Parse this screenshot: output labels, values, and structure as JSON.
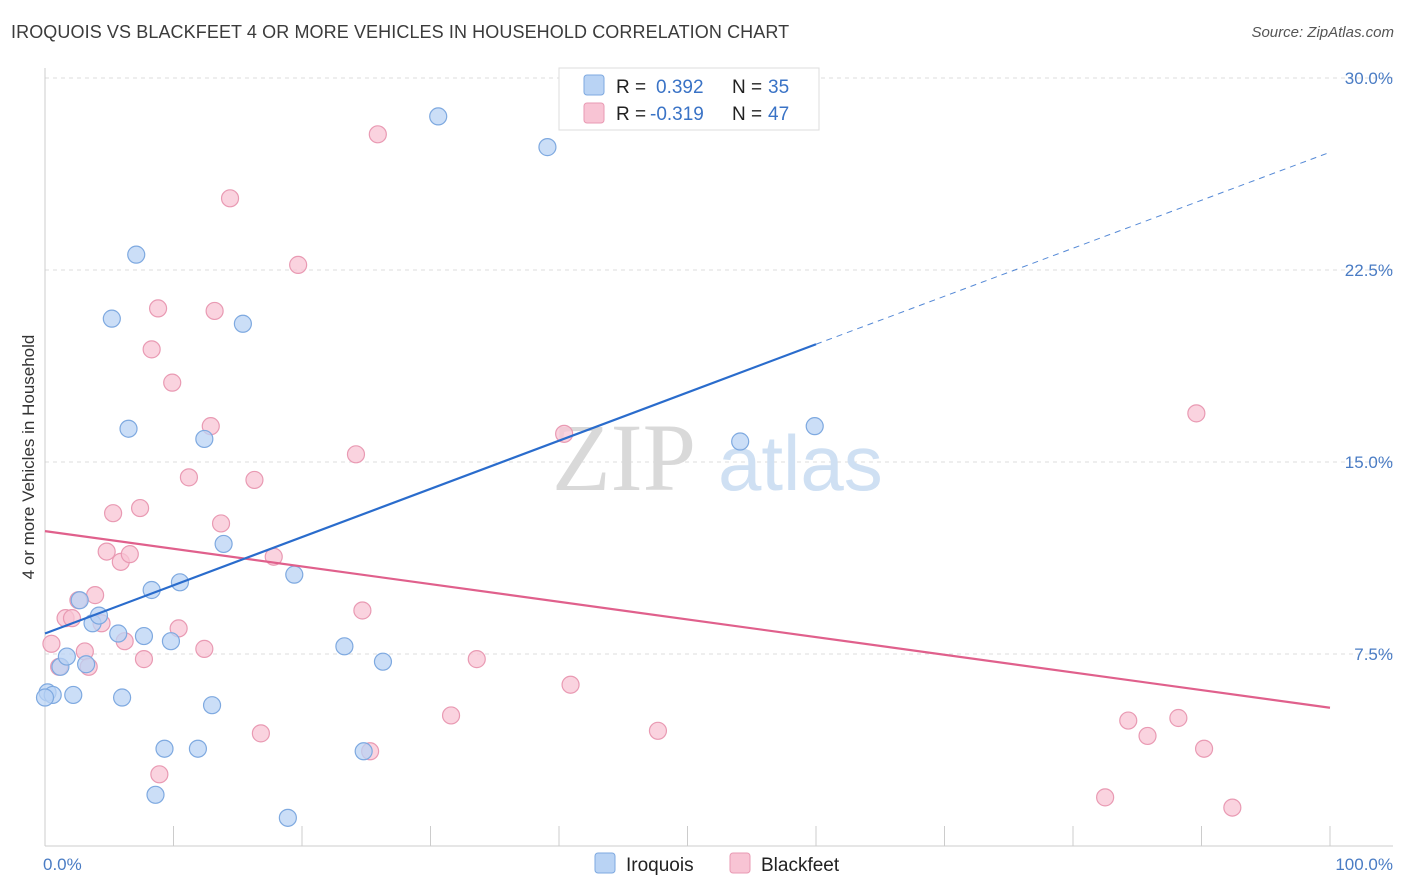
{
  "header": {
    "title": "IROQUOIS VS BLACKFEET 4 OR MORE VEHICLES IN HOUSEHOLD CORRELATION CHART",
    "source": "Source: ZipAtlas.com"
  },
  "watermark": {
    "zip": "ZIP",
    "atlas": "atlas"
  },
  "legend": {
    "r_label": "R =",
    "n_label": "N =",
    "iroquois": {
      "r": "0.392",
      "n": "35"
    },
    "blackfeet": {
      "r": "-0.319",
      "n": "47"
    }
  },
  "colors": {
    "iroquois_fill": "#b9d3f4",
    "iroquois_stroke": "#7ea9e0",
    "iroquois_line": "#2a6ccc",
    "blackfeet_fill": "#f8c4d4",
    "blackfeet_stroke": "#e99ab3",
    "blackfeet_line": "#e0608c",
    "tick_label": "#4a7cc4",
    "grid": "#dddddd"
  },
  "chart_data": {
    "type": "scatter",
    "title": "IROQUOIS VS BLACKFEET 4 OR MORE VEHICLES IN HOUSEHOLD CORRELATION CHART",
    "xlabel": "",
    "ylabel": "4 or more Vehicles in Household",
    "xlim": [
      0,
      100
    ],
    "ylim": [
      0,
      30
    ],
    "x_tick_labels": [
      {
        "value": 0,
        "label": "0.0%"
      },
      {
        "value": 100,
        "label": "100.0%"
      }
    ],
    "y_tick_labels": [
      {
        "value": 7.5,
        "label": "7.5%"
      },
      {
        "value": 15,
        "label": "15.0%"
      },
      {
        "value": 22.5,
        "label": "22.5%"
      },
      {
        "value": 30,
        "label": "30.0%"
      }
    ],
    "grid": true,
    "legend_position": "top-center",
    "series": [
      {
        "name": "Iroquois",
        "points": [
          [
            0.2,
            6.0
          ],
          [
            0.6,
            5.9
          ],
          [
            1.2,
            7.0
          ],
          [
            1.7,
            7.4
          ],
          [
            2.2,
            5.9
          ],
          [
            2.7,
            9.6
          ],
          [
            3.2,
            7.1
          ],
          [
            3.7,
            8.7
          ],
          [
            4.2,
            9.0
          ],
          [
            5.2,
            20.6
          ],
          [
            5.7,
            8.3
          ],
          [
            6.0,
            5.8
          ],
          [
            6.5,
            16.3
          ],
          [
            7.1,
            23.1
          ],
          [
            7.7,
            8.2
          ],
          [
            8.3,
            10.0
          ],
          [
            8.6,
            2.0
          ],
          [
            9.3,
            3.8
          ],
          [
            9.8,
            8.0
          ],
          [
            10.5,
            10.3
          ],
          [
            11.9,
            3.8
          ],
          [
            12.4,
            15.9
          ],
          [
            13.0,
            5.5
          ],
          [
            13.9,
            11.8
          ],
          [
            15.4,
            20.4
          ],
          [
            18.9,
            1.1
          ],
          [
            19.4,
            10.6
          ],
          [
            23.3,
            7.8
          ],
          [
            24.8,
            3.7
          ],
          [
            26.3,
            7.2
          ],
          [
            30.6,
            28.5
          ],
          [
            39.1,
            27.3
          ],
          [
            54.1,
            15.8
          ],
          [
            59.9,
            16.4
          ],
          [
            0.0,
            5.8
          ]
        ],
        "trend": {
          "x": [
            0,
            60
          ],
          "y": [
            8.3,
            19.6
          ],
          "dashed_extension_to": [
            100,
            27.1
          ]
        }
      },
      {
        "name": "Blackfeet",
        "points": [
          [
            0.5,
            7.9
          ],
          [
            1.1,
            7.0
          ],
          [
            1.6,
            8.9
          ],
          [
            2.1,
            8.9
          ],
          [
            2.6,
            9.6
          ],
          [
            3.1,
            7.6
          ],
          [
            3.4,
            7.0
          ],
          [
            3.9,
            9.8
          ],
          [
            4.4,
            8.7
          ],
          [
            4.8,
            11.5
          ],
          [
            5.3,
            13.0
          ],
          [
            5.9,
            11.1
          ],
          [
            6.2,
            8.0
          ],
          [
            6.6,
            11.4
          ],
          [
            7.4,
            13.2
          ],
          [
            7.7,
            7.3
          ],
          [
            8.3,
            19.4
          ],
          [
            8.8,
            21.0
          ],
          [
            8.9,
            2.8
          ],
          [
            9.9,
            18.1
          ],
          [
            10.4,
            8.5
          ],
          [
            11.2,
            14.4
          ],
          [
            12.4,
            7.7
          ],
          [
            12.9,
            16.4
          ],
          [
            13.2,
            20.9
          ],
          [
            13.7,
            12.6
          ],
          [
            14.4,
            25.3
          ],
          [
            16.3,
            14.3
          ],
          [
            16.8,
            4.4
          ],
          [
            17.8,
            11.3
          ],
          [
            19.7,
            22.7
          ],
          [
            24.2,
            15.3
          ],
          [
            24.7,
            9.2
          ],
          [
            25.3,
            3.7
          ],
          [
            25.9,
            27.8
          ],
          [
            31.6,
            5.1
          ],
          [
            33.6,
            7.3
          ],
          [
            40.4,
            16.1
          ],
          [
            40.9,
            6.3
          ],
          [
            47.7,
            4.5
          ],
          [
            82.5,
            1.9
          ],
          [
            84.3,
            4.9
          ],
          [
            85.8,
            4.3
          ],
          [
            88.2,
            5.0
          ],
          [
            89.6,
            16.9
          ],
          [
            90.2,
            3.8
          ],
          [
            92.4,
            1.5
          ]
        ],
        "trend": {
          "x": [
            0,
            100
          ],
          "y": [
            12.3,
            5.4
          ]
        }
      }
    ]
  },
  "bottom_legend": {
    "iroquois": "Iroquois",
    "blackfeet": "Blackfeet"
  }
}
